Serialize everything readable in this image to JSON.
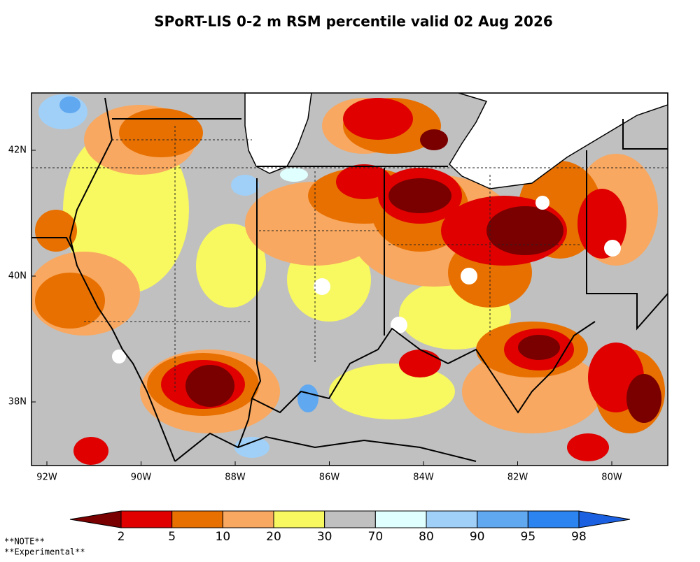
{
  "title": "SPoRT-LIS 0-2 m RSM percentile valid 02 Aug 2026",
  "map": {
    "x_labels": [
      "92W",
      "90W",
      "88W",
      "86W",
      "84W",
      "82W",
      "80W"
    ],
    "y_labels": [
      "42N",
      "40N",
      "38N"
    ]
  },
  "colorbar": {
    "bins": [
      2,
      5,
      10,
      20,
      30,
      70,
      80,
      90,
      95,
      98
    ],
    "colors": [
      "#7a0000",
      "#e00000",
      "#e87000",
      "#f8a860",
      "#f8f860",
      "#c0c0c0",
      "#e0ffff",
      "#a0d0f8",
      "#60a8f0",
      "#2c84f0",
      "#1a60e0"
    ]
  },
  "notes": [
    "**NOTE**",
    "**Experimental**"
  ]
}
